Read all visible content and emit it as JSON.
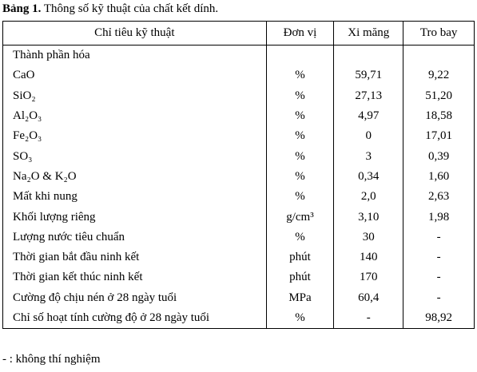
{
  "caption": {
    "label": "Bảng 1.",
    "text": "Thông số kỹ thuật của chất kết dính."
  },
  "table": {
    "header": [
      "Chỉ tiêu kỹ thuật",
      "Đơn vị",
      "Xi măng",
      "Tro bay"
    ],
    "rows": [
      [
        "Thành phần hóa"
      ],
      [
        "CaO",
        "%",
        "59,71",
        "9,22"
      ],
      [
        "SiO₂",
        "%",
        "27,13",
        "51,20"
      ],
      [
        "Al₂O₃",
        "%",
        "4,97",
        "18,58"
      ],
      [
        "Fe₂O₃",
        "%",
        "0",
        "17,01"
      ],
      [
        "SO₃",
        "%",
        "3",
        "0,39"
      ],
      [
        "Na₂O & K₂O",
        "%",
        "0,34",
        "1,60"
      ],
      [
        "Mất khi nung",
        "%",
        "2,0",
        "2,63"
      ],
      [
        "Khối lượng riêng",
        "g/cm³",
        "3,10",
        "1,98"
      ],
      [
        "Lượng nước tiêu chuẩn",
        "%",
        "30",
        "-"
      ],
      [
        "Thời gian bắt đầu ninh kết",
        "phút",
        "140",
        "-"
      ],
      [
        "Thời gian kết thúc ninh kết",
        "phút",
        "170",
        "-"
      ],
      [
        "Cường độ chịu nén ở 28 ngày tuổi",
        "MPa",
        "60,4",
        "-"
      ],
      [
        "Chỉ số hoạt tính cường độ ở 28 ngày tuổi",
        "%",
        "-",
        "98,92"
      ]
    ]
  },
  "footnote": "- : không thí nghiệm"
}
